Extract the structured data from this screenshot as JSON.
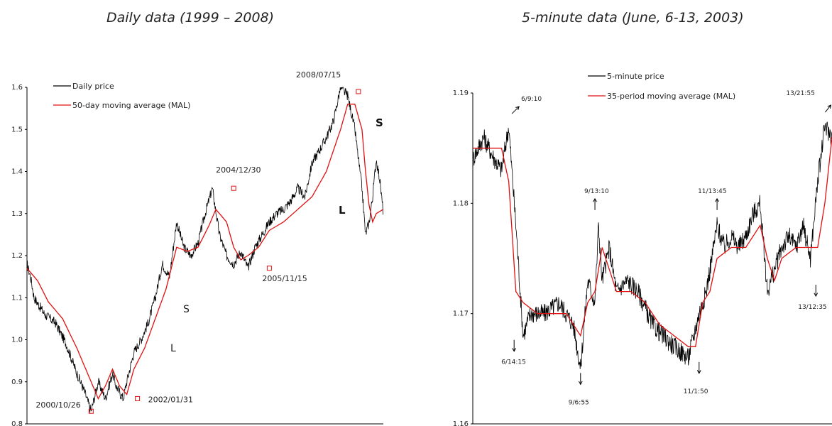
{
  "chart_data": [
    {
      "type": "line",
      "title": "Daily data (1999 – 2008)",
      "ylim": [
        0.8,
        1.6
      ],
      "yticks": [
        "0.8",
        "0.9",
        "1.0",
        "1.1",
        "1.2",
        "1.3",
        "1.4",
        "1.5",
        "1.6"
      ],
      "series": [
        {
          "name": "Daily price",
          "color": "#000000",
          "x": [
            0,
            0.01,
            0.02,
            0.05,
            0.08,
            0.11,
            0.14,
            0.16,
            0.18,
            0.2,
            0.22,
            0.24,
            0.25,
            0.27,
            0.28,
            0.3,
            0.32,
            0.34,
            0.36,
            0.38,
            0.4,
            0.42,
            0.44,
            0.46,
            0.48,
            0.5,
            0.52,
            0.54,
            0.56,
            0.58,
            0.6,
            0.62,
            0.64,
            0.66,
            0.68,
            0.7,
            0.72,
            0.74,
            0.76,
            0.78,
            0.8,
            0.82,
            0.84,
            0.86,
            0.88,
            0.9,
            0.92,
            0.94,
            0.95,
            0.96,
            0.97,
            0.98,
            0.99,
            1.0
          ],
          "y": [
            1.18,
            1.15,
            1.1,
            1.06,
            1.04,
            0.99,
            0.92,
            0.88,
            0.83,
            0.9,
            0.86,
            0.92,
            0.89,
            0.86,
            0.9,
            0.97,
            1.0,
            1.04,
            1.1,
            1.18,
            1.15,
            1.28,
            1.22,
            1.2,
            1.23,
            1.3,
            1.36,
            1.25,
            1.2,
            1.18,
            1.21,
            1.17,
            1.22,
            1.25,
            1.28,
            1.3,
            1.31,
            1.33,
            1.36,
            1.34,
            1.42,
            1.45,
            1.48,
            1.52,
            1.6,
            1.58,
            1.5,
            1.36,
            1.25,
            1.28,
            1.34,
            1.43,
            1.38,
            1.3
          ]
        },
        {
          "name": "50-day moving average (MAL)",
          "color": "#e01010",
          "x": [
            0,
            0.03,
            0.06,
            0.1,
            0.14,
            0.17,
            0.2,
            0.22,
            0.24,
            0.26,
            0.28,
            0.3,
            0.33,
            0.36,
            0.39,
            0.42,
            0.45,
            0.48,
            0.51,
            0.53,
            0.56,
            0.58,
            0.6,
            0.62,
            0.65,
            0.68,
            0.72,
            0.76,
            0.8,
            0.84,
            0.88,
            0.9,
            0.92,
            0.94,
            0.95,
            0.96,
            0.97,
            0.98,
            1.0
          ],
          "y": [
            1.17,
            1.14,
            1.09,
            1.05,
            0.98,
            0.92,
            0.86,
            0.89,
            0.93,
            0.89,
            0.87,
            0.93,
            0.98,
            1.05,
            1.12,
            1.22,
            1.21,
            1.22,
            1.27,
            1.31,
            1.28,
            1.22,
            1.19,
            1.2,
            1.22,
            1.26,
            1.28,
            1.31,
            1.34,
            1.4,
            1.5,
            1.56,
            1.56,
            1.5,
            1.4,
            1.32,
            1.28,
            1.3,
            1.31
          ]
        }
      ],
      "annotations": [
        {
          "text": "2000/10/26",
          "x": 0.18,
          "y": 0.83
        },
        {
          "text": "2002/01/31",
          "x": 0.31,
          "y": 0.86
        },
        {
          "text": "2004/12/30",
          "x": 0.58,
          "y": 1.36
        },
        {
          "text": "2005/11/15",
          "x": 0.68,
          "y": 1.17
        },
        {
          "text": "2008/07/15",
          "x": 0.93,
          "y": 1.59
        }
      ],
      "signals": [
        "S",
        "L",
        "L",
        "S"
      ]
    },
    {
      "type": "line",
      "title": "5-minute data (June, 6-13, 2003)",
      "ylim": [
        1.16,
        1.19
      ],
      "yticks": [
        "1.16",
        "1.17",
        "1.18",
        "1.19"
      ],
      "series": [
        {
          "name": "5-minute price",
          "color": "#000000",
          "x": [
            0,
            0.03,
            0.06,
            0.08,
            0.1,
            0.12,
            0.14,
            0.16,
            0.2,
            0.24,
            0.28,
            0.3,
            0.32,
            0.34,
            0.35,
            0.36,
            0.38,
            0.4,
            0.43,
            0.46,
            0.5,
            0.53,
            0.56,
            0.6,
            0.63,
            0.65,
            0.68,
            0.7,
            0.72,
            0.74,
            0.76,
            0.78,
            0.8,
            0.82,
            0.84,
            0.86,
            0.88,
            0.9,
            0.92,
            0.94,
            0.96,
            0.98,
            1.0
          ],
          "y": [
            1.184,
            1.186,
            1.184,
            1.183,
            1.187,
            1.178,
            1.168,
            1.17,
            1.17,
            1.171,
            1.169,
            1.165,
            1.173,
            1.171,
            1.178,
            1.173,
            1.176,
            1.172,
            1.173,
            1.172,
            1.169,
            1.168,
            1.167,
            1.166,
            1.17,
            1.172,
            1.178,
            1.176,
            1.177,
            1.176,
            1.177,
            1.179,
            1.18,
            1.172,
            1.174,
            1.176,
            1.177,
            1.176,
            1.178,
            1.175,
            1.182,
            1.187,
            1.186
          ]
        },
        {
          "name": "35-period moving average (MAL)",
          "color": "#e01010",
          "x": [
            0,
            0.04,
            0.08,
            0.1,
            0.12,
            0.14,
            0.18,
            0.22,
            0.26,
            0.3,
            0.32,
            0.34,
            0.36,
            0.38,
            0.4,
            0.44,
            0.48,
            0.52,
            0.56,
            0.6,
            0.62,
            0.64,
            0.66,
            0.68,
            0.72,
            0.76,
            0.8,
            0.82,
            0.84,
            0.86,
            0.9,
            0.94,
            0.96,
            0.98,
            1.0
          ],
          "y": [
            1.185,
            1.185,
            1.185,
            1.182,
            1.172,
            1.171,
            1.17,
            1.17,
            1.17,
            1.168,
            1.171,
            1.172,
            1.176,
            1.174,
            1.172,
            1.172,
            1.171,
            1.169,
            1.168,
            1.167,
            1.167,
            1.171,
            1.172,
            1.175,
            1.176,
            1.176,
            1.178,
            1.175,
            1.173,
            1.175,
            1.176,
            1.176,
            1.176,
            1.18,
            1.186
          ]
        }
      ],
      "annotations": [
        {
          "text": "6/9:10",
          "x": 0.105,
          "y": 1.188
        },
        {
          "text": "6/14:15",
          "x": 0.115,
          "y": 1.168
        },
        {
          "text": "9/6:55",
          "x": 0.3,
          "y": 1.165
        },
        {
          "text": "9/13:10",
          "x": 0.34,
          "y": 1.179
        },
        {
          "text": "11/1:50",
          "x": 0.63,
          "y": 1.166
        },
        {
          "text": "11/13:45",
          "x": 0.68,
          "y": 1.179
        },
        {
          "text": "13/12:35",
          "x": 0.955,
          "y": 1.173
        },
        {
          "text": "13/21:55",
          "x": 0.985,
          "y": 1.188
        }
      ]
    }
  ]
}
